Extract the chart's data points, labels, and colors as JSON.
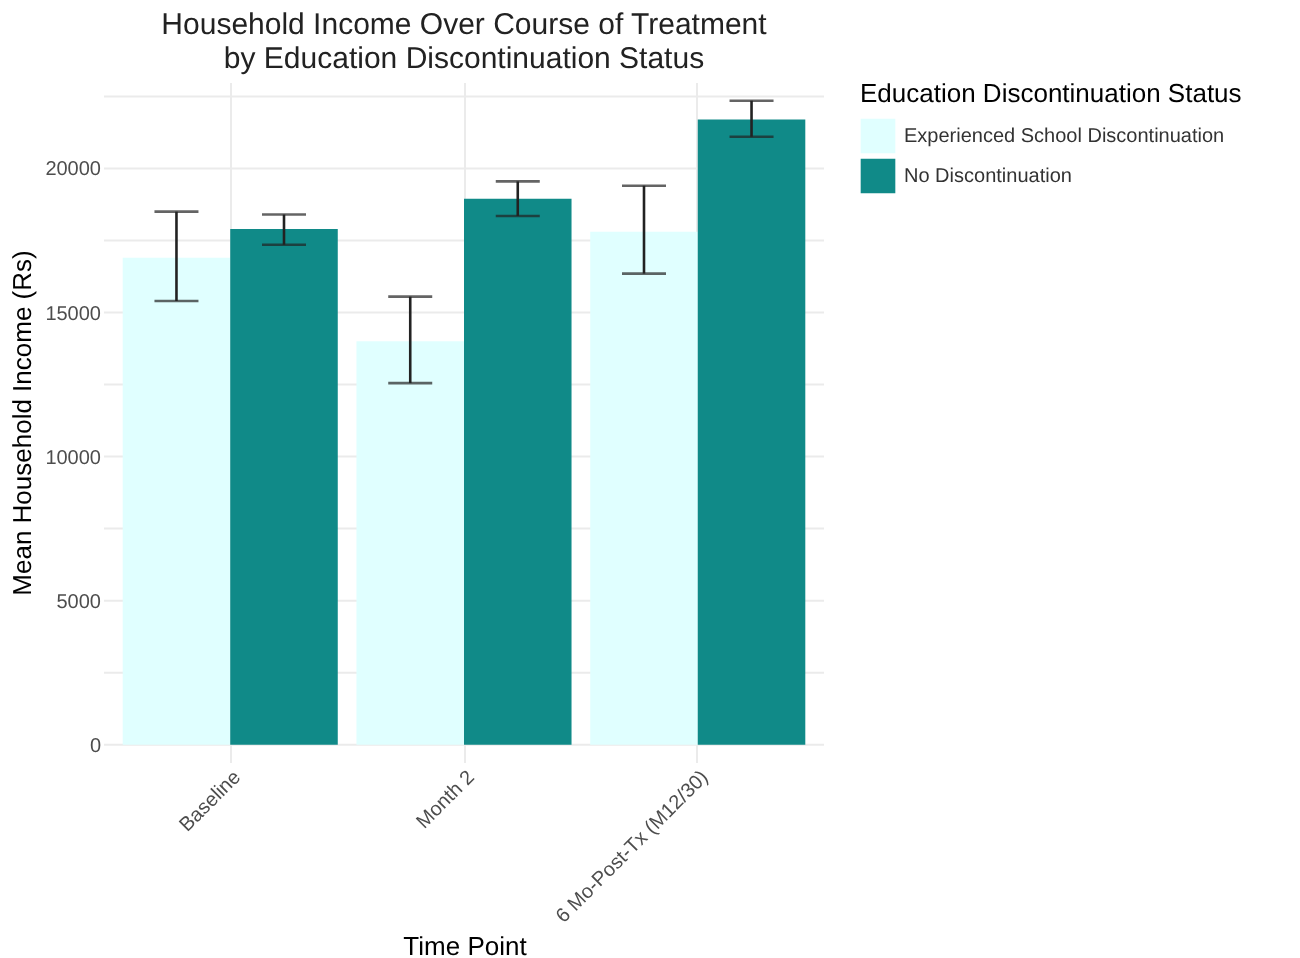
{
  "chart_data": {
    "type": "bar",
    "title": "Household Income Over Course of Treatment\nby Education Discontinuation Status",
    "xlabel": "Time Point",
    "ylabel": "Mean Household Income (Rs)",
    "legend_title": "Education Discontinuation Status",
    "categories": [
      "Baseline",
      "Month 2",
      "6 Mo-Post-Tx (M12/30)"
    ],
    "series": [
      {
        "name": "Experienced School Discontinuation",
        "color": "#e0ffff",
        "values": [
          16900,
          14000,
          17800
        ],
        "errors": [
          [
            15400,
            18500
          ],
          [
            12550,
            15550
          ],
          [
            16350,
            19400
          ]
        ]
      },
      {
        "name": "No Discontinuation",
        "color": "#108a88",
        "values": [
          17900,
          18950,
          21700
        ],
        "errors": [
          [
            17350,
            18400
          ],
          [
            18350,
            19550
          ],
          [
            21100,
            22350
          ]
        ]
      }
    ],
    "ylim": [
      -600,
      23000
    ],
    "yticks": [
      0,
      {
        "value": 2500,
        "label": null
      },
      5000,
      {
        "value": 7500,
        "label": null
      },
      10000,
      {
        "value": 12500,
        "label": null
      },
      15000,
      {
        "value": 17500,
        "label": null
      },
      20000,
      {
        "value": 22500,
        "label": null
      }
    ],
    "grid": true,
    "legend": "right"
  }
}
